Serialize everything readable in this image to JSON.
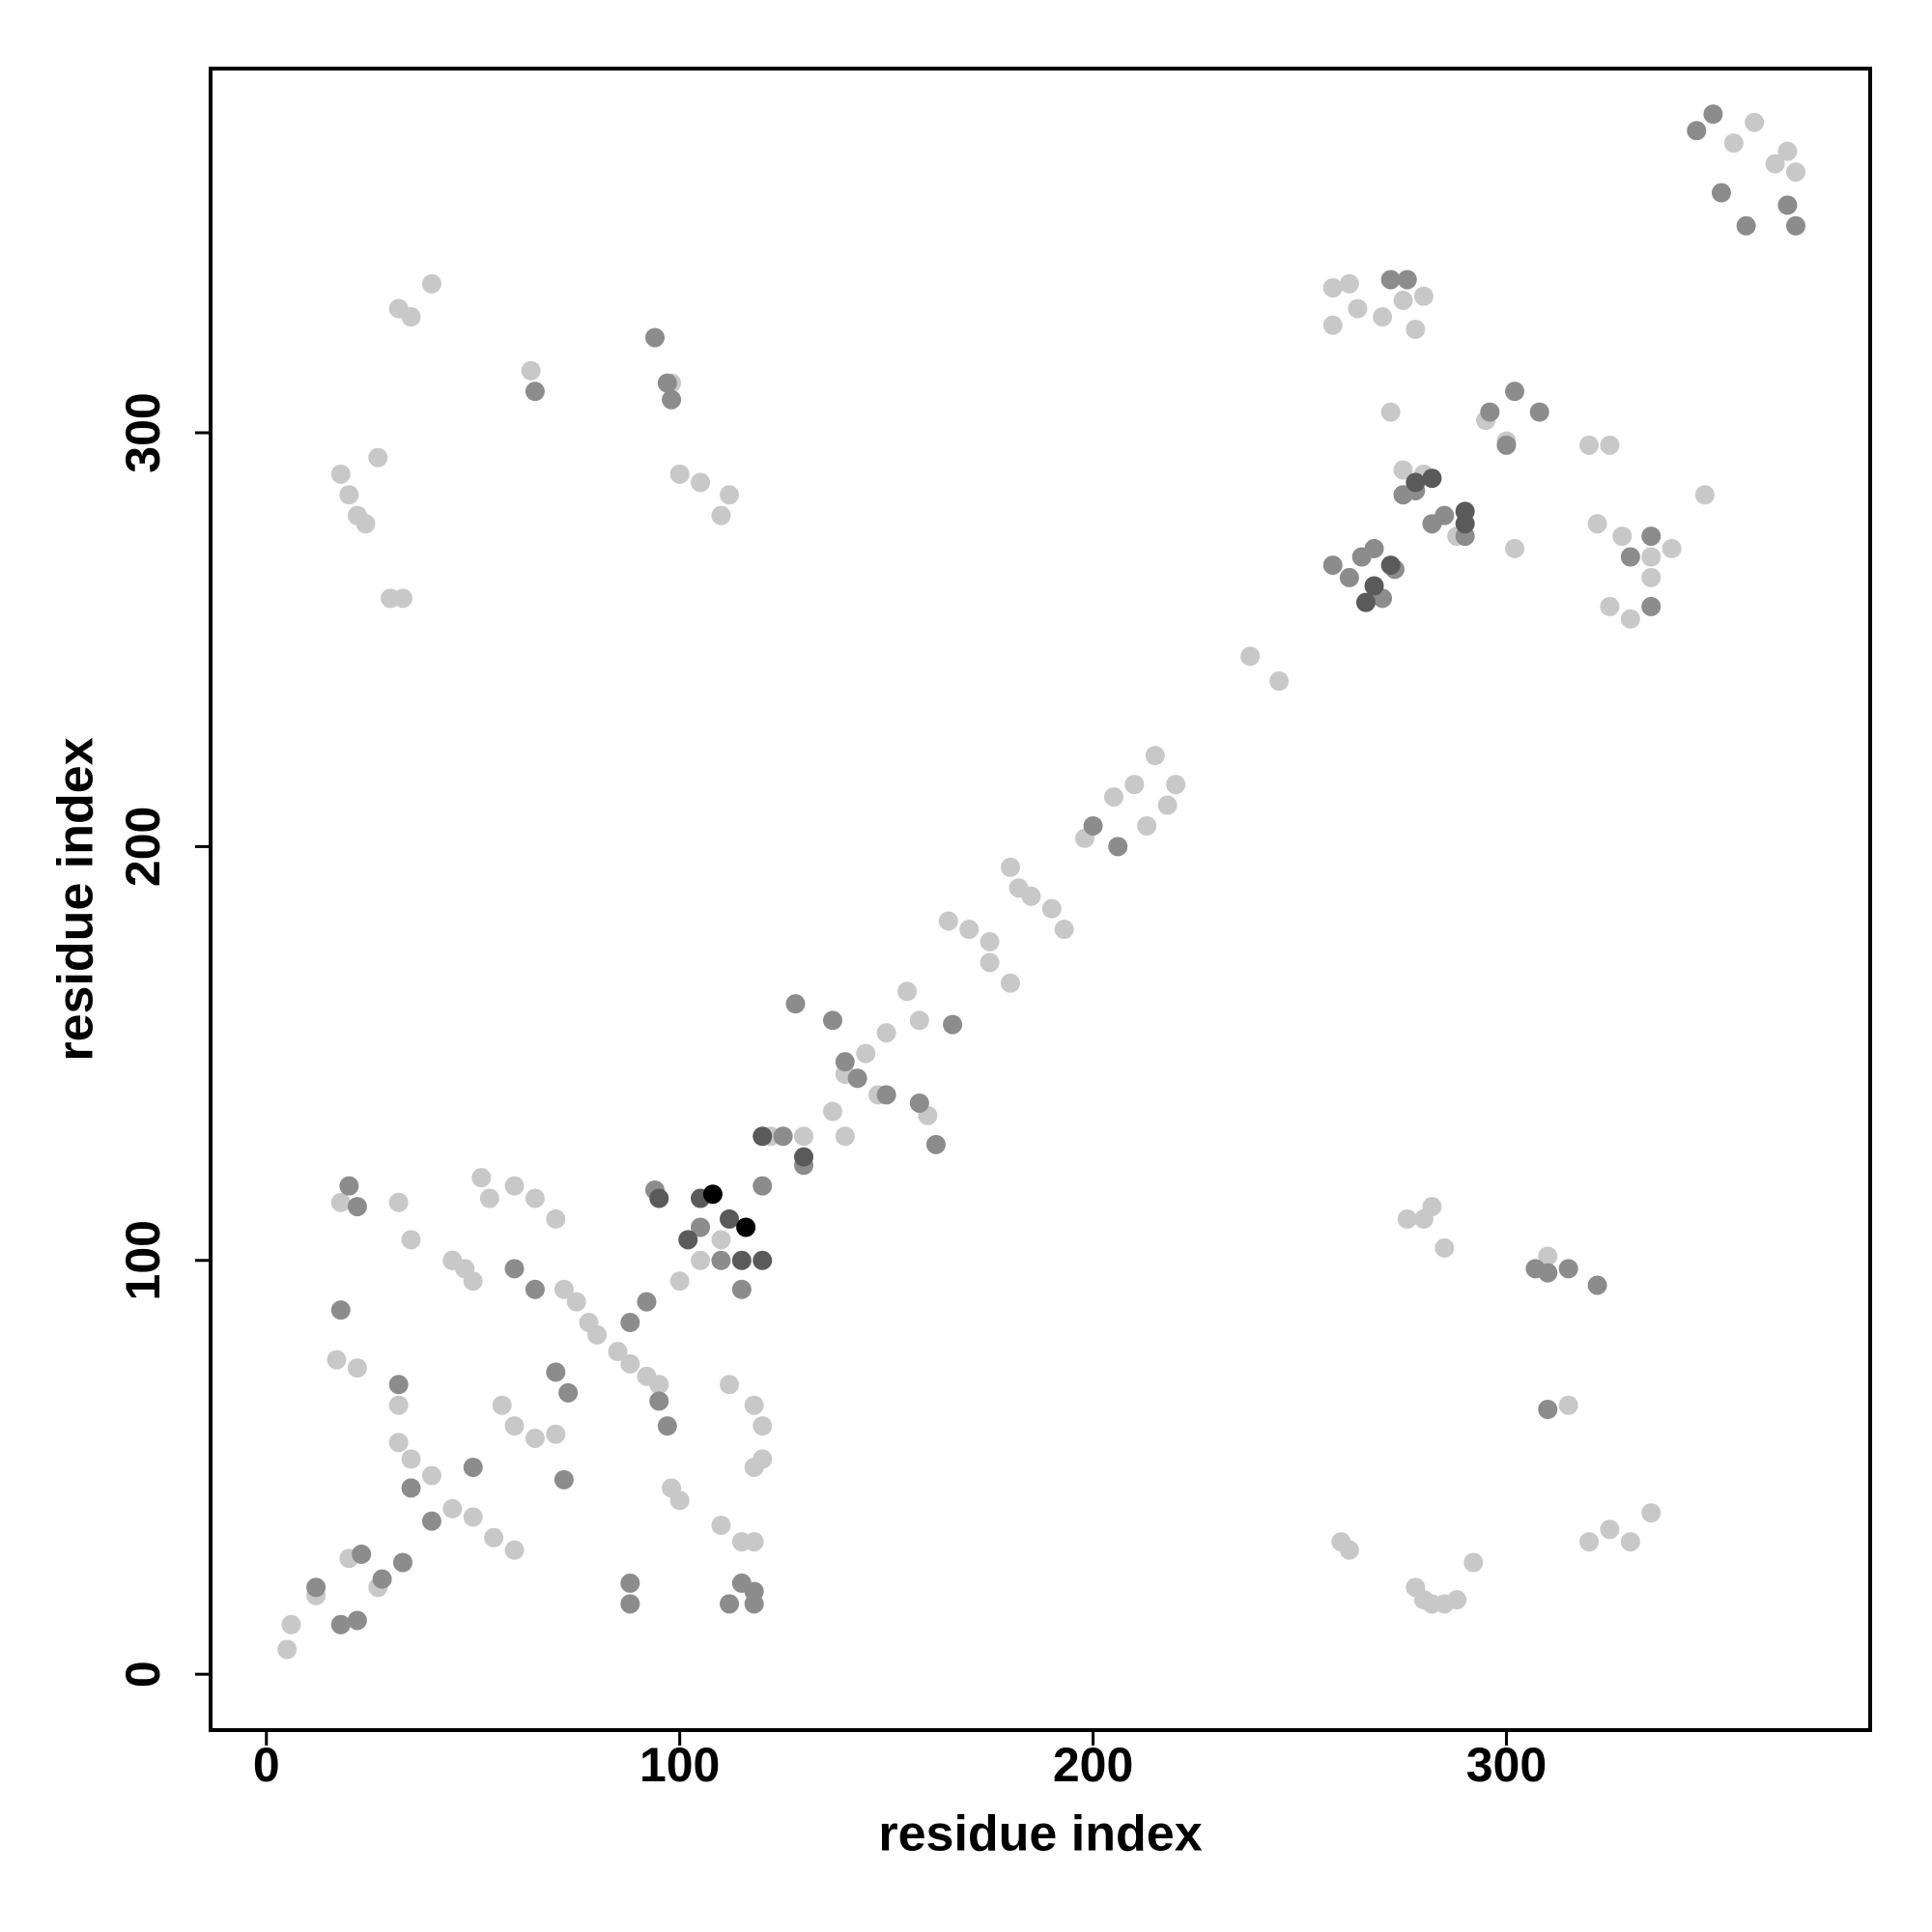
{
  "chart_data": {
    "type": "scatter",
    "x_label": "residue index",
    "y_label": "residue index",
    "xlim": [
      -13.5,
      388
    ],
    "ylim": [
      -13.5,
      388
    ],
    "xticks": [
      0,
      100,
      200,
      300
    ],
    "yticks": [
      0,
      100,
      200,
      300
    ],
    "grid": false,
    "series": [
      {
        "color": "#c8c8c8",
        "x": [
          5,
          6,
          12,
          18,
          20,
          27,
          32,
          35,
          40,
          45,
          50,
          55,
          60,
          52,
          54,
          60,
          65,
          70,
          45,
          48,
          50,
          57,
          60,
          65,
          70,
          72,
          75,
          78,
          80,
          85,
          88,
          92,
          95,
          100,
          105,
          110,
          98,
          100,
          110,
          112,
          118,
          120,
          118,
          115,
          118,
          120,
          122,
          130,
          140,
          145,
          150,
          155,
          158,
          148,
          140,
          137,
          160,
          165,
          170,
          175,
          180,
          182,
          185,
          190,
          193,
          175,
          180,
          198,
          205,
          210,
          215,
          220,
          213,
          218,
          238,
          245,
          258,
          262,
          258,
          264,
          270,
          275,
          280,
          278,
          272,
          275,
          280,
          288,
          295,
          300,
          302,
          320,
          325,
          322,
          328,
          335,
          340,
          325,
          330,
          335,
          348,
          355,
          360,
          365,
          368,
          370,
          18,
          20,
          22,
          24,
          27,
          30,
          33,
          32,
          35,
          40,
          64,
          98,
          100,
          105,
          110,
          112,
          18,
          32,
          35,
          45,
          32,
          17,
          22,
          260,
          262,
          278,
          280,
          282,
          285,
          288,
          292,
          280,
          282,
          285,
          276,
          310,
          315,
          320,
          325,
          330,
          335
        ],
        "y": [
          6,
          12,
          19,
          12,
          28,
          21,
          56,
          52,
          48,
          40,
          38,
          33,
          30,
          120,
          115,
          118,
          115,
          110,
          100,
          98,
          95,
          65,
          60,
          57,
          58,
          93,
          90,
          85,
          82,
          78,
          75,
          72,
          70,
          95,
          100,
          105,
          45,
          42,
          36,
          70,
          65,
          60,
          50,
          32,
          32,
          52,
          130,
          130,
          145,
          150,
          155,
          165,
          158,
          140,
          130,
          136,
          135,
          182,
          180,
          177,
          195,
          190,
          188,
          185,
          180,
          172,
          167,
          202,
          212,
          215,
          222,
          215,
          205,
          210,
          246,
          240,
          335,
          336,
          326,
          330,
          328,
          332,
          333,
          325,
          305,
          291,
          290,
          275,
          303,
          298,
          272,
          297,
          297,
          278,
          275,
          270,
          272,
          258,
          255,
          265,
          285,
          370,
          375,
          365,
          368,
          363,
          290,
          285,
          280,
          278,
          294,
          260,
          260,
          330,
          328,
          336,
          315,
          312,
          290,
          288,
          280,
          285,
          114,
          114,
          105,
          100,
          65,
          76,
          74,
          32,
          30,
          21,
          18,
          17,
          17,
          18,
          27,
          110,
          113,
          103,
          110,
          101,
          65,
          32,
          35,
          32,
          39
        ]
      },
      {
        "color": "#8c8c8c",
        "x": [
          12,
          18,
          22,
          23,
          28,
          33,
          18,
          20,
          22,
          32,
          35,
          40,
          50,
          60,
          65,
          65,
          70,
          72,
          73,
          88,
          88,
          92,
          94,
          95,
          97,
          97,
          98,
          94,
          105,
          110,
          115,
          120,
          125,
          128,
          130,
          137,
          140,
          143,
          150,
          158,
          162,
          166,
          200,
          206,
          258,
          262,
          265,
          268,
          270,
          273,
          275,
          278,
          282,
          285,
          290,
          296,
          300,
          302,
          308,
          307,
          310,
          315,
          322,
          310,
          115,
          118,
          88,
          335,
          330,
          272,
          276,
          346,
          350,
          352,
          358,
          370,
          368,
          335,
          112,
          118
        ],
        "y": [
          21,
          12,
          13,
          29,
          23,
          27,
          88,
          118,
          113,
          70,
          45,
          37,
          50,
          98,
          93,
          310,
          73,
          47,
          68,
          85,
          17,
          90,
          117,
          66,
          60,
          312,
          308,
          323,
          108,
          100,
          93,
          118,
          130,
          162,
          123,
          158,
          148,
          144,
          140,
          138,
          128,
          157,
          205,
          200,
          268,
          265,
          270,
          272,
          260,
          267,
          285,
          286,
          278,
          280,
          275,
          305,
          297,
          310,
          305,
          98,
          97,
          98,
          94,
          64,
          22,
          20,
          22,
          275,
          270,
          337,
          337,
          373,
          377,
          358,
          350,
          350,
          355,
          258,
          17,
          17
        ]
      },
      {
        "color": "#5a5a5a",
        "x": [
          266,
          268,
          272,
          278,
          282,
          290,
          290,
          105,
          112,
          120,
          130,
          95,
          102,
          115,
          120
        ],
        "y": [
          259,
          263,
          268,
          288,
          289,
          281,
          278,
          115,
          110,
          130,
          125,
          115,
          105,
          100,
          100
        ]
      },
      {
        "color": "#000000",
        "x": [
          108,
          116
        ],
        "y": [
          116,
          108
        ]
      }
    ]
  }
}
